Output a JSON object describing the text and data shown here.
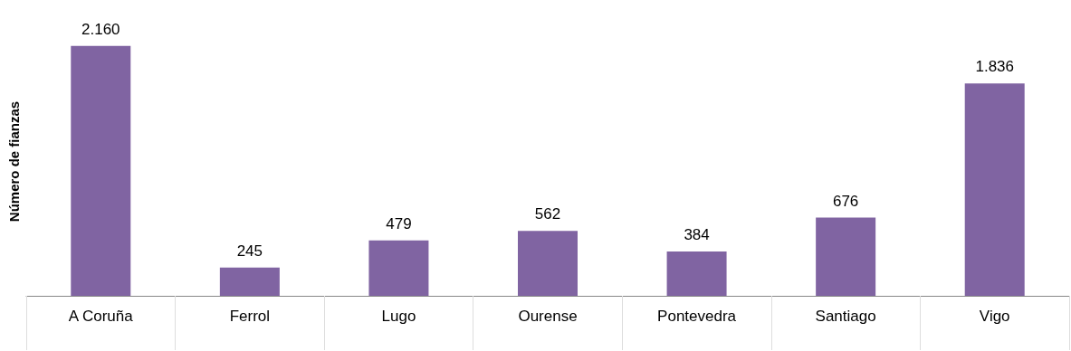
{
  "chart_data": {
    "type": "bar",
    "ylabel": "Número de fianzas",
    "categories": [
      "A Coruña",
      "Ferrol",
      "Lugo",
      "Ourense",
      "Pontevedra",
      "Santiago",
      "Vigo"
    ],
    "values": [
      2160,
      245,
      479,
      562,
      384,
      676,
      1836
    ],
    "value_labels": [
      "2.160",
      "245",
      "479",
      "562",
      "384",
      "676",
      "1.836"
    ],
    "color": "#8064a2"
  }
}
